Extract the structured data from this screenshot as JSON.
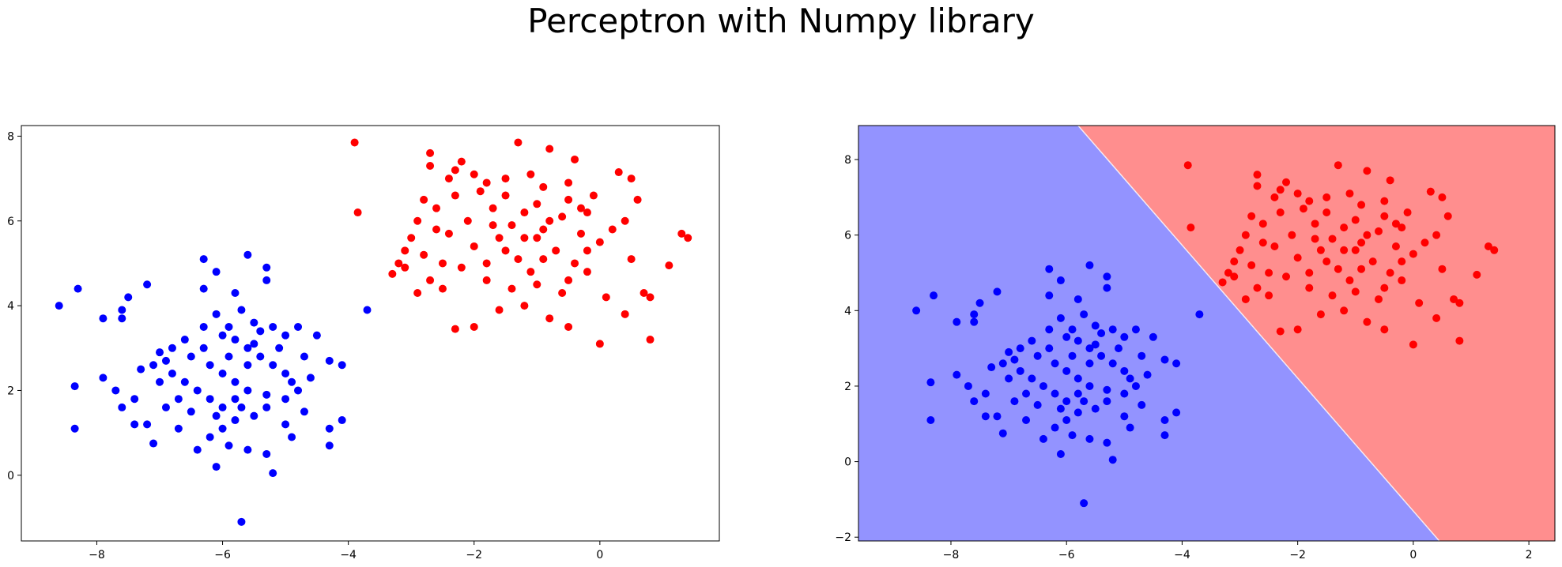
{
  "suptitle": "Perceptron with Numpy library",
  "colors": {
    "class_0": "#0000ff",
    "class_1": "#ff0000",
    "region_0": "#9393ff",
    "region_1": "#ff8e8e"
  },
  "chart_data": [
    {
      "type": "scatter",
      "title": "",
      "xlabel": "",
      "ylabel": "",
      "xlim": [
        -9.2,
        1.9
      ],
      "ylim": [
        -1.55,
        8.25
      ],
      "xticks": [
        "−8",
        "−6",
        "−4",
        "−2",
        "0"
      ],
      "xtick_values": [
        -8,
        -6,
        -4,
        -2,
        0
      ],
      "yticks": [
        "0",
        "2",
        "4",
        "6",
        "8"
      ],
      "ytick_values": [
        0,
        2,
        4,
        6,
        8
      ],
      "grid": false,
      "series": [
        {
          "color": "#0000ff",
          "points": [
            [
              -8.6,
              4.0
            ],
            [
              -8.3,
              4.4
            ],
            [
              -8.35,
              2.1
            ],
            [
              -8.35,
              1.1
            ],
            [
              -7.9,
              3.7
            ],
            [
              -7.9,
              2.3
            ],
            [
              -7.6,
              3.9
            ],
            [
              -7.6,
              3.7
            ],
            [
              -7.5,
              4.2
            ],
            [
              -7.2,
              4.5
            ],
            [
              -7.7,
              2.0
            ],
            [
              -7.6,
              1.6
            ],
            [
              -7.4,
              1.8
            ],
            [
              -7.4,
              1.2
            ],
            [
              -7.2,
              1.2
            ],
            [
              -7.1,
              0.75
            ],
            [
              -6.9,
              1.6
            ],
            [
              -6.7,
              1.1
            ],
            [
              -7.1,
              2.6
            ],
            [
              -7.0,
              2.9
            ],
            [
              -6.8,
              2.4
            ],
            [
              -6.6,
              2.2
            ],
            [
              -6.3,
              5.1
            ],
            [
              -6.1,
              4.8
            ],
            [
              -6.3,
              4.4
            ],
            [
              -5.8,
              4.3
            ],
            [
              -5.6,
              5.2
            ],
            [
              -5.3,
              4.9
            ],
            [
              -5.3,
              4.6
            ],
            [
              -5.7,
              3.9
            ],
            [
              -6.1,
              3.8
            ],
            [
              -6.3,
              3.5
            ],
            [
              -6.0,
              3.3
            ],
            [
              -5.8,
              3.2
            ],
            [
              -5.6,
              3.0
            ],
            [
              -5.4,
              3.4
            ],
            [
              -5.2,
              3.5
            ],
            [
              -5.0,
              3.3
            ],
            [
              -4.8,
              3.5
            ],
            [
              -4.5,
              3.3
            ],
            [
              -4.3,
              2.7
            ],
            [
              -4.1,
              2.6
            ],
            [
              -4.6,
              2.3
            ],
            [
              -4.8,
              2.0
            ],
            [
              -5.0,
              1.8
            ],
            [
              -5.3,
              1.6
            ],
            [
              -5.5,
              1.4
            ],
            [
              -5.8,
              1.3
            ],
            [
              -6.0,
              1.1
            ],
            [
              -6.2,
              0.9
            ],
            [
              -5.9,
              0.7
            ],
            [
              -5.6,
              0.6
            ],
            [
              -5.3,
              0.5
            ],
            [
              -5.2,
              0.05
            ],
            [
              -6.1,
              0.2
            ],
            [
              -6.4,
              0.6
            ],
            [
              -5.0,
              1.2
            ],
            [
              -4.9,
              0.9
            ],
            [
              -4.3,
              1.1
            ],
            [
              -4.3,
              0.7
            ],
            [
              -4.1,
              1.3
            ],
            [
              -3.7,
              3.9
            ],
            [
              -5.7,
              -1.1
            ],
            [
              -6.5,
              2.8
            ],
            [
              -6.2,
              2.6
            ],
            [
              -6.0,
              2.4
            ],
            [
              -5.8,
              2.2
            ],
            [
              -5.6,
              2.0
            ],
            [
              -5.4,
              2.8
            ],
            [
              -5.2,
              2.6
            ],
            [
              -5.0,
              2.4
            ],
            [
              -4.9,
              2.2
            ],
            [
              -6.4,
              2.0
            ],
            [
              -6.2,
              1.8
            ],
            [
              -6.0,
              1.6
            ],
            [
              -5.8,
              1.8
            ],
            [
              -5.6,
              2.6
            ],
            [
              -6.6,
              3.2
            ],
            [
              -6.8,
              3.0
            ],
            [
              -7.0,
              2.2
            ],
            [
              -6.3,
              3.0
            ],
            [
              -5.9,
              2.8
            ],
            [
              -5.5,
              3.1
            ],
            [
              -5.1,
              3.0
            ],
            [
              -4.7,
              2.8
            ],
            [
              -6.5,
              1.5
            ],
            [
              -6.1,
              1.4
            ],
            [
              -5.7,
              1.6
            ],
            [
              -5.3,
              1.9
            ],
            [
              -4.7,
              1.5
            ],
            [
              -7.3,
              2.5
            ],
            [
              -6.9,
              2.7
            ],
            [
              -6.7,
              1.8
            ],
            [
              -5.9,
              3.5
            ],
            [
              -5.5,
              3.6
            ]
          ]
        },
        {
          "color": "#ff0000",
          "points": [
            [
              -3.9,
              7.85
            ],
            [
              -3.85,
              6.2
            ],
            [
              -3.3,
              4.75
            ],
            [
              -3.1,
              4.9
            ],
            [
              -3.1,
              5.3
            ],
            [
              -3.0,
              5.6
            ],
            [
              -2.9,
              6.0
            ],
            [
              -2.8,
              6.5
            ],
            [
              -2.7,
              7.3
            ],
            [
              -2.7,
              7.6
            ],
            [
              -2.4,
              7.0
            ],
            [
              -2.3,
              7.2
            ],
            [
              -2.2,
              7.4
            ],
            [
              -2.0,
              7.1
            ],
            [
              -1.8,
              6.9
            ],
            [
              -1.5,
              6.6
            ],
            [
              -1.3,
              7.85
            ],
            [
              -1.1,
              7.1
            ],
            [
              -0.8,
              7.7
            ],
            [
              -0.9,
              6.8
            ],
            [
              -0.4,
              7.45
            ],
            [
              -0.5,
              6.9
            ],
            [
              -0.2,
              6.2
            ],
            [
              0.3,
              7.15
            ],
            [
              0.5,
              7.0
            ],
            [
              0.6,
              6.5
            ],
            [
              0.4,
              6.0
            ],
            [
              0.0,
              5.5
            ],
            [
              0.5,
              5.1
            ],
            [
              0.7,
              4.3
            ],
            [
              0.8,
              4.2
            ],
            [
              1.1,
              4.95
            ],
            [
              1.3,
              5.7
            ],
            [
              1.4,
              5.6
            ],
            [
              0.8,
              3.2
            ],
            [
              0.0,
              3.1
            ],
            [
              0.4,
              3.8
            ],
            [
              -0.5,
              3.5
            ],
            [
              -0.8,
              3.7
            ],
            [
              -1.2,
              4.0
            ],
            [
              -1.6,
              3.9
            ],
            [
              -2.0,
              3.5
            ],
            [
              -2.3,
              3.45
            ],
            [
              -2.5,
              4.4
            ],
            [
              -2.7,
              4.6
            ],
            [
              -2.9,
              4.3
            ],
            [
              -1.0,
              4.5
            ],
            [
              -0.5,
              4.6
            ],
            [
              -1.8,
              5.0
            ],
            [
              -1.5,
              5.3
            ],
            [
              -1.2,
              5.6
            ],
            [
              -0.9,
              5.8
            ],
            [
              -0.6,
              6.1
            ],
            [
              -0.3,
              5.7
            ],
            [
              -2.4,
              5.7
            ],
            [
              -2.1,
              6.0
            ],
            [
              -1.7,
              6.3
            ],
            [
              -1.4,
              5.9
            ],
            [
              -1.0,
              6.4
            ],
            [
              -0.7,
              5.3
            ],
            [
              -0.4,
              5.0
            ],
            [
              -2.2,
              4.9
            ],
            [
              -2.0,
              5.4
            ],
            [
              -1.6,
              5.6
            ],
            [
              -1.3,
              5.1
            ],
            [
              -0.9,
              5.1
            ],
            [
              -0.2,
              5.3
            ],
            [
              0.2,
              5.8
            ],
            [
              -2.6,
              6.3
            ],
            [
              -2.3,
              6.6
            ],
            [
              -1.9,
              6.7
            ],
            [
              -1.5,
              7.0
            ],
            [
              -1.2,
              6.2
            ],
            [
              -0.8,
              6.0
            ],
            [
              -0.5,
              6.5
            ],
            [
              -0.1,
              6.6
            ],
            [
              -2.8,
              5.2
            ],
            [
              -2.5,
              5.0
            ],
            [
              -1.1,
              4.8
            ],
            [
              -0.6,
              4.3
            ],
            [
              -0.2,
              4.8
            ],
            [
              0.1,
              4.2
            ],
            [
              -1.8,
              4.6
            ],
            [
              -1.4,
              4.4
            ],
            [
              -3.2,
              5.0
            ],
            [
              -2.6,
              5.8
            ],
            [
              -1.7,
              5.9
            ],
            [
              -1.0,
              5.6
            ],
            [
              -0.3,
              6.3
            ]
          ]
        }
      ]
    },
    {
      "type": "scatter",
      "title": "",
      "xlabel": "",
      "ylabel": "",
      "xlim": [
        -9.6,
        2.45
      ],
      "ylim": [
        -2.1,
        8.9
      ],
      "xticks": [
        "−8",
        "−6",
        "−4",
        "−2",
        "0",
        "2"
      ],
      "xtick_values": [
        -8,
        -6,
        -4,
        -2,
        0,
        2
      ],
      "yticks": [
        "−2",
        "0",
        "2",
        "4",
        "6",
        "8"
      ],
      "ytick_values": [
        -2,
        0,
        2,
        4,
        6,
        8
      ],
      "grid": false,
      "decision_boundary": {
        "x_at_ymin": 0.45,
        "x_at_ymax": -5.8
      },
      "series": [
        "same points as first panel"
      ]
    }
  ]
}
